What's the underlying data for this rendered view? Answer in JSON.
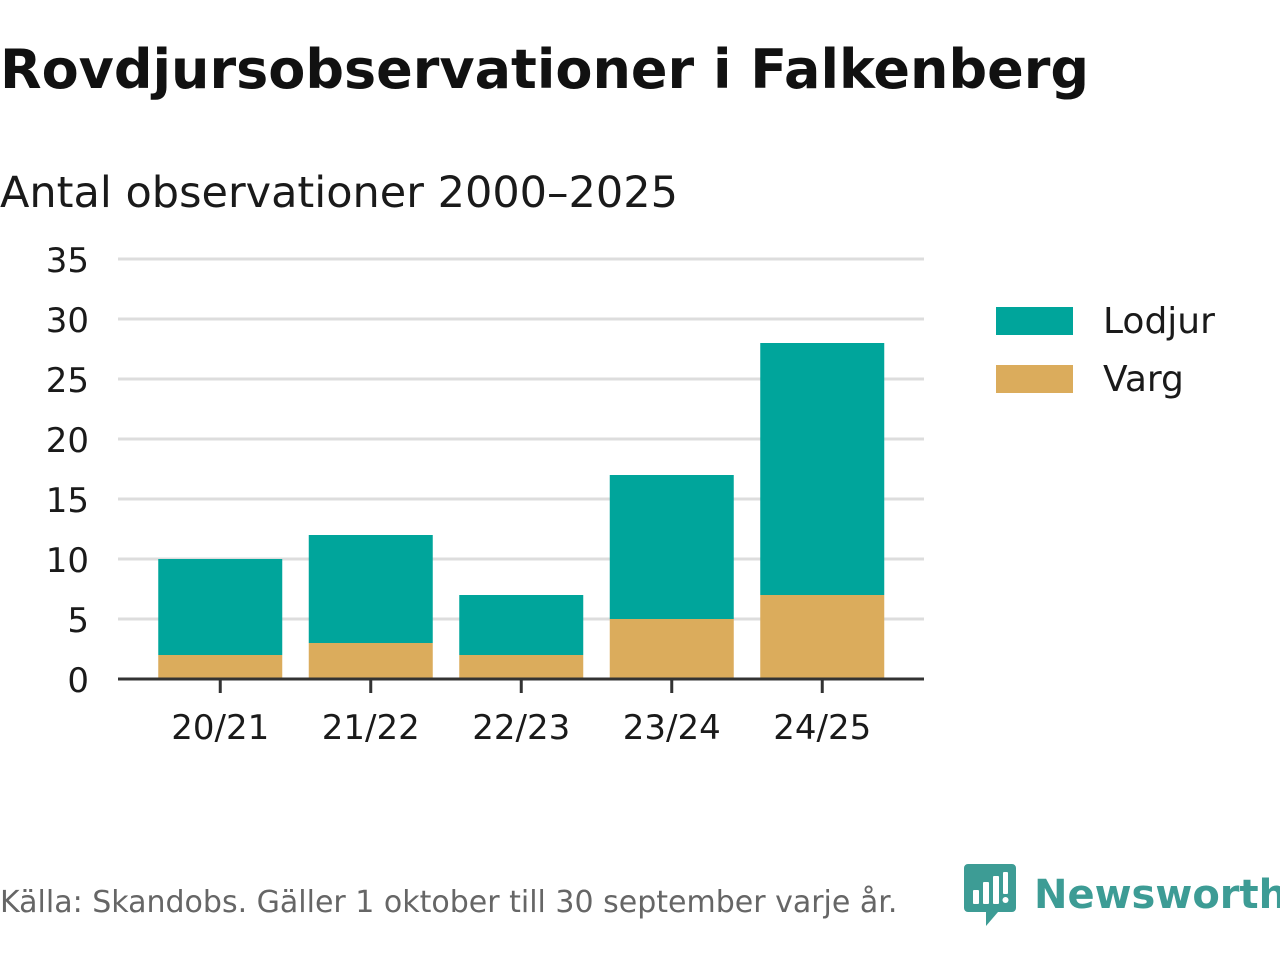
{
  "title": "Rovdjursobservationer i Falkenberg",
  "subtitle": "Antal observationer 2000–2025",
  "source": "Källa: Skandobs. Gäller 1 oktober till 30 september varje år.",
  "brand": {
    "name": "Newsworthy",
    "icon": "newsworthy-logo-icon",
    "color": "#3d9c95"
  },
  "colors": {
    "lodjur": "#00a59b",
    "varg": "#dbac5c",
    "grid": "#dddddd",
    "axis": "#333333"
  },
  "legend": {
    "placement": "right",
    "items": [
      {
        "label": "Lodjur",
        "color": "#00a59b"
      },
      {
        "label": "Varg",
        "color": "#dbac5c"
      }
    ]
  },
  "chart_data": {
    "type": "bar",
    "stacked": true,
    "title": "Rovdjursobservationer i Falkenberg",
    "subtitle": "Antal observationer 2000–2025",
    "xlabel": "",
    "ylabel": "",
    "ylim": [
      0,
      35
    ],
    "yticks": [
      0,
      5,
      10,
      15,
      20,
      25,
      30,
      35
    ],
    "grid": true,
    "categories": [
      "20/21",
      "21/22",
      "22/23",
      "23/24",
      "24/25"
    ],
    "series": [
      {
        "name": "Varg",
        "values": [
          2,
          3,
          2,
          5,
          7
        ],
        "color": "#dbac5c"
      },
      {
        "name": "Lodjur",
        "values": [
          8,
          9,
          5,
          12,
          21
        ],
        "color": "#00a59b"
      }
    ]
  }
}
